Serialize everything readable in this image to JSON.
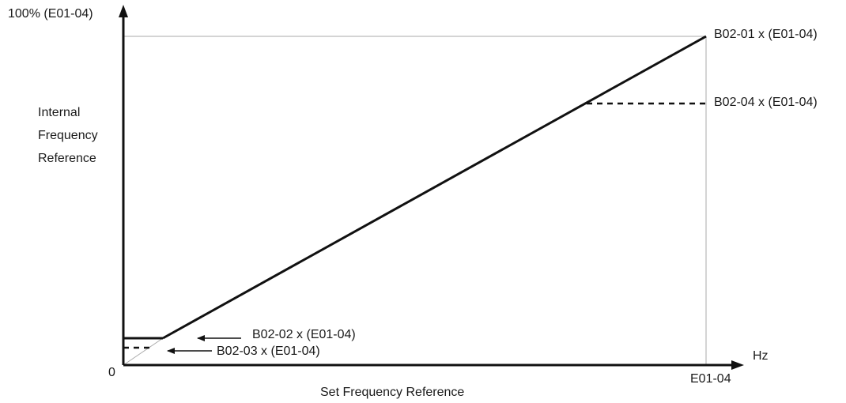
{
  "diagram": {
    "y_top_label": "100% (E01-04)",
    "y_axis_title": [
      "Internal",
      "Frequency",
      "Reference"
    ],
    "origin_label": "0",
    "x_unit_label": "Hz",
    "x_max_label": "E01-04",
    "x_axis_title": "Set Frequency Reference",
    "annotations": {
      "upper_limit": "B02-01 x (E01-04)",
      "upper_clamp": "B02-04 x (E01-04)",
      "lower_limit": "B02-02 x (E01-04)",
      "lower_clamp": "B02-03 x (E01-04)"
    }
  },
  "colors": {
    "line": "#111111",
    "guide": "#aaaaaa",
    "text": "#1a1a1a"
  }
}
